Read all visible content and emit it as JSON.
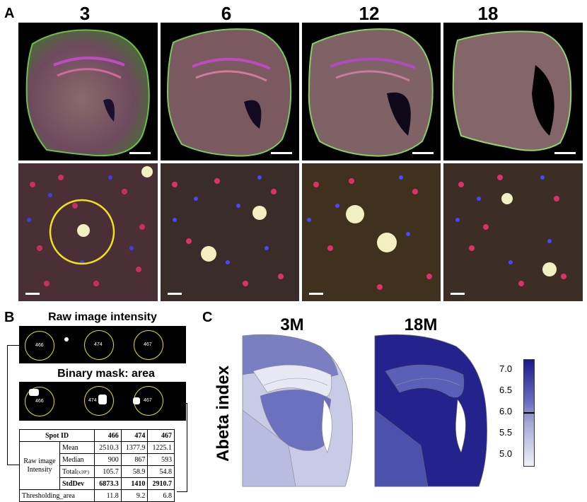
{
  "panel_a": {
    "letter": "A",
    "columns": [
      {
        "label": "3"
      },
      {
        "label": "6"
      },
      {
        "label": "12"
      },
      {
        "label": "18"
      }
    ]
  },
  "panel_b": {
    "letter": "B",
    "raw_title": "Raw image intensity",
    "mask_title": "Binary mask: area",
    "spots": [
      "466",
      "474",
      "467"
    ],
    "table": {
      "header": {
        "label": "Spot ID",
        "values": [
          "466",
          "474",
          "467"
        ]
      },
      "group_label_line1": "Raw image",
      "group_label_line2": "Intensity",
      "rows": [
        {
          "label": "Mean",
          "values": [
            "2510.3",
            "1377.9",
            "1225.1"
          ]
        },
        {
          "label": "Median",
          "values": [
            "900",
            "867",
            "593"
          ]
        },
        {
          "label": "Total",
          "label_sub": "(x10⁶)",
          "values": [
            "105.7",
            "58.9",
            "54.8"
          ]
        },
        {
          "label": "StdDev",
          "values": [
            "6873.3",
            "1410",
            "2910.7"
          ]
        }
      ],
      "threshold_row": {
        "label": "Thresholding_area",
        "values": [
          "11.8",
          "9.2",
          "6.8"
        ]
      }
    }
  },
  "panel_c": {
    "letter": "C",
    "ylabel": "Abeta index",
    "map_3m_title": "3M",
    "map_18m_title": "18M",
    "colorbar": {
      "ticks": [
        "7.0",
        "6.5",
        "6.0",
        "5.5",
        "5.0"
      ],
      "min": 4.85,
      "max": 7.35,
      "marker_value": 6.1,
      "color_low": "#eef0f8",
      "color_high": "#1a1a8c"
    }
  }
}
